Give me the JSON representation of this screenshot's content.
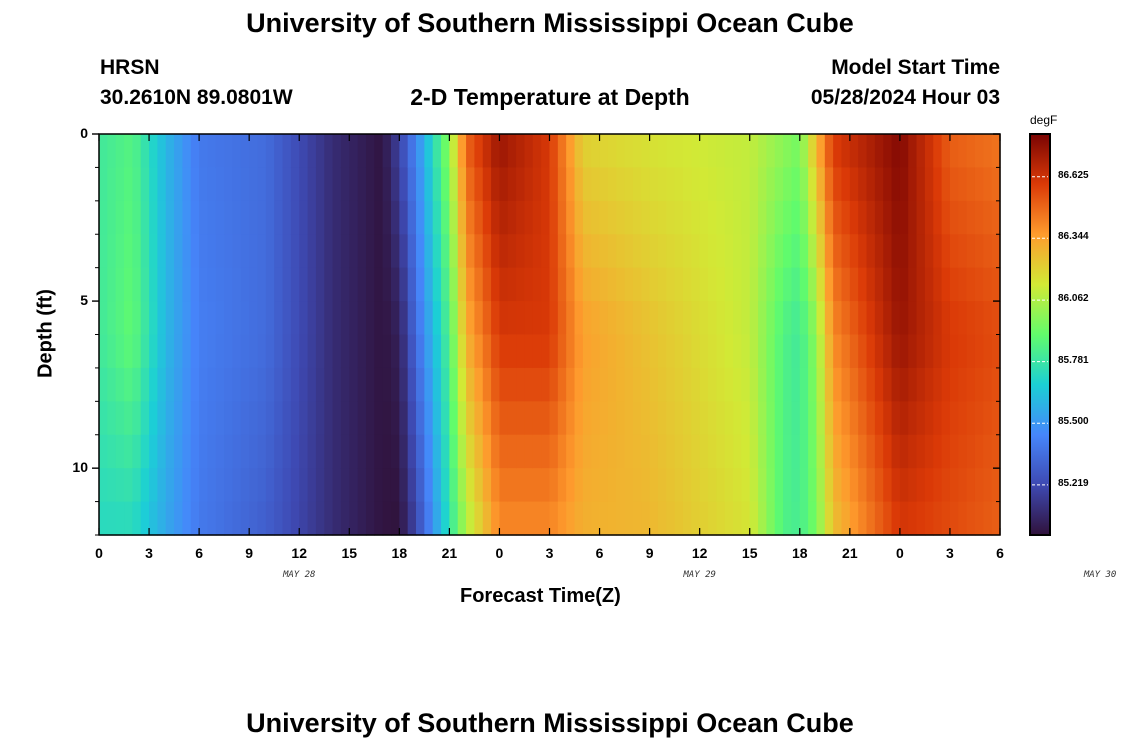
{
  "header": {
    "title": "University of Southern Mississippi Ocean Cube",
    "station": "HRSN",
    "coords": "30.2610N  89.0801W",
    "subtitle": "2-D Temperature at Depth",
    "start_label": "Model Start Time",
    "start_value": "05/28/2024 Hour 03"
  },
  "footer": {
    "title": "University of Southern Mississippi Ocean Cube"
  },
  "chart_data": {
    "type": "heatmap",
    "xlabel": "Forecast Time(Z)",
    "ylabel": "Depth (ft)",
    "colorbar_unit": "degF",
    "x_ticks": [
      "0",
      "3",
      "6",
      "9",
      "12",
      "15",
      "18",
      "21",
      "0",
      "3",
      "6",
      "9",
      "12",
      "15",
      "18",
      "21",
      "0",
      "3",
      "6"
    ],
    "date_labels": [
      "MAY 28",
      "MAY 29",
      "MAY 30"
    ],
    "y_ticks": [
      "0",
      "5",
      "10"
    ],
    "xlim_hours": [
      0,
      54
    ],
    "ylim_ft": [
      0,
      12
    ],
    "colorbar_ticks": [
      "86.625",
      "86.344",
      "86.062",
      "85.781",
      "85.500",
      "85.219"
    ],
    "colorbar_values": [
      86.625,
      86.344,
      86.062,
      85.781,
      85.5,
      85.219
    ],
    "vmin": 84.99,
    "vmax": 86.82,
    "colors": [
      "#30123b",
      "#3e49b2",
      "#4686fb",
      "#1bd0d5",
      "#62fc6b",
      "#d2e935",
      "#fe9b2d",
      "#db3a07",
      "#7a0403"
    ],
    "depth_profile_ft": [
      0,
      6,
      12
    ],
    "temperature_keyframes": [
      {
        "hour": 0,
        "degF": [
          85.8,
          85.8,
          85.72
        ]
      },
      {
        "hour": 2,
        "degF": [
          85.86,
          85.9,
          85.72
        ]
      },
      {
        "hour": 4,
        "degF": [
          85.6,
          85.6,
          85.55
        ]
      },
      {
        "hour": 6,
        "degF": [
          85.4,
          85.42,
          85.4
        ]
      },
      {
        "hour": 10,
        "degF": [
          85.35,
          85.35,
          85.3
        ]
      },
      {
        "hour": 14,
        "degF": [
          85.1,
          85.1,
          85.1
        ]
      },
      {
        "hour": 17,
        "degF": [
          85.0,
          85.0,
          85.0
        ]
      },
      {
        "hour": 18,
        "degF": [
          85.2,
          85.05,
          84.99
        ]
      },
      {
        "hour": 19,
        "degF": [
          85.45,
          85.35,
          85.2
        ]
      },
      {
        "hour": 21,
        "degF": [
          86.0,
          85.85,
          85.75
        ]
      },
      {
        "hour": 22,
        "degF": [
          86.5,
          86.3,
          86.05
        ]
      },
      {
        "hour": 24,
        "degF": [
          86.75,
          86.6,
          86.4
        ]
      },
      {
        "hour": 27,
        "degF": [
          86.6,
          86.6,
          86.4
        ]
      },
      {
        "hour": 29,
        "degF": [
          86.2,
          86.35,
          86.3
        ]
      },
      {
        "hour": 33,
        "degF": [
          86.15,
          86.25,
          86.28
        ]
      },
      {
        "hour": 39,
        "degF": [
          86.1,
          86.1,
          86.15
        ]
      },
      {
        "hour": 41,
        "degF": [
          86.0,
          85.85,
          85.85
        ]
      },
      {
        "hour": 42,
        "degF": [
          85.95,
          85.8,
          85.82
        ]
      },
      {
        "hour": 43,
        "degF": [
          86.3,
          86.0,
          85.95
        ]
      },
      {
        "hour": 44,
        "degF": [
          86.6,
          86.4,
          86.25
        ]
      },
      {
        "hour": 48,
        "degF": [
          86.8,
          86.75,
          86.6
        ]
      },
      {
        "hour": 51,
        "degF": [
          86.5,
          86.6,
          86.55
        ]
      },
      {
        "hour": 54,
        "degF": [
          86.45,
          86.55,
          86.5
        ]
      }
    ]
  }
}
